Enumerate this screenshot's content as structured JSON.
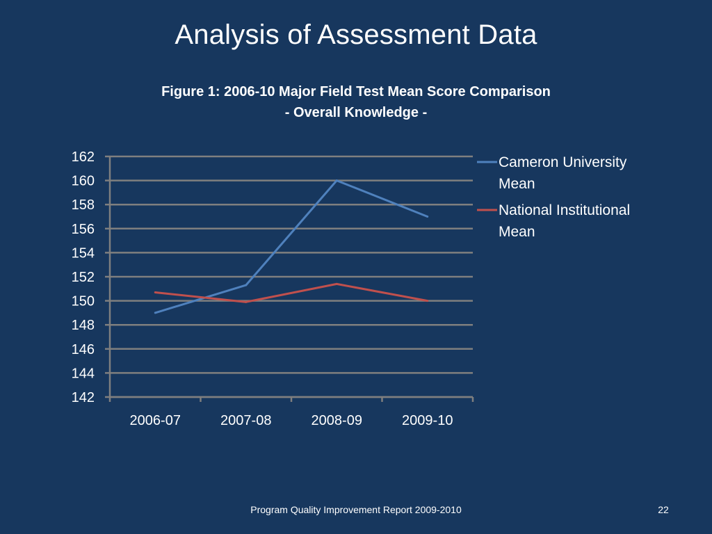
{
  "slide": {
    "title": "Analysis of Assessment Data",
    "footer": "Program Quality Improvement Report 2009-2010",
    "page_number": "22",
    "background_color": "#17375E"
  },
  "chart_data": {
    "type": "line",
    "title": "Figure 1: 2006-10 Major Field Test Mean Score Comparison",
    "subtitle": "- Overall Knowledge -",
    "categories": [
      "2006-07",
      "2007-08",
      "2008-09",
      "2009-10"
    ],
    "series": [
      {
        "name": "Cameron University Mean",
        "values": [
          149,
          151.3,
          160,
          157
        ],
        "color": "#4F81BD"
      },
      {
        "name": "National Institutional Mean",
        "values": [
          150.7,
          149.9,
          151.4,
          150
        ],
        "color": "#C0504D"
      }
    ],
    "ylim": [
      142,
      162
    ],
    "yticks": [
      142,
      144,
      146,
      148,
      150,
      152,
      154,
      156,
      158,
      160,
      162
    ],
    "grid": true,
    "legend": "right",
    "xlabel": "",
    "ylabel": ""
  }
}
